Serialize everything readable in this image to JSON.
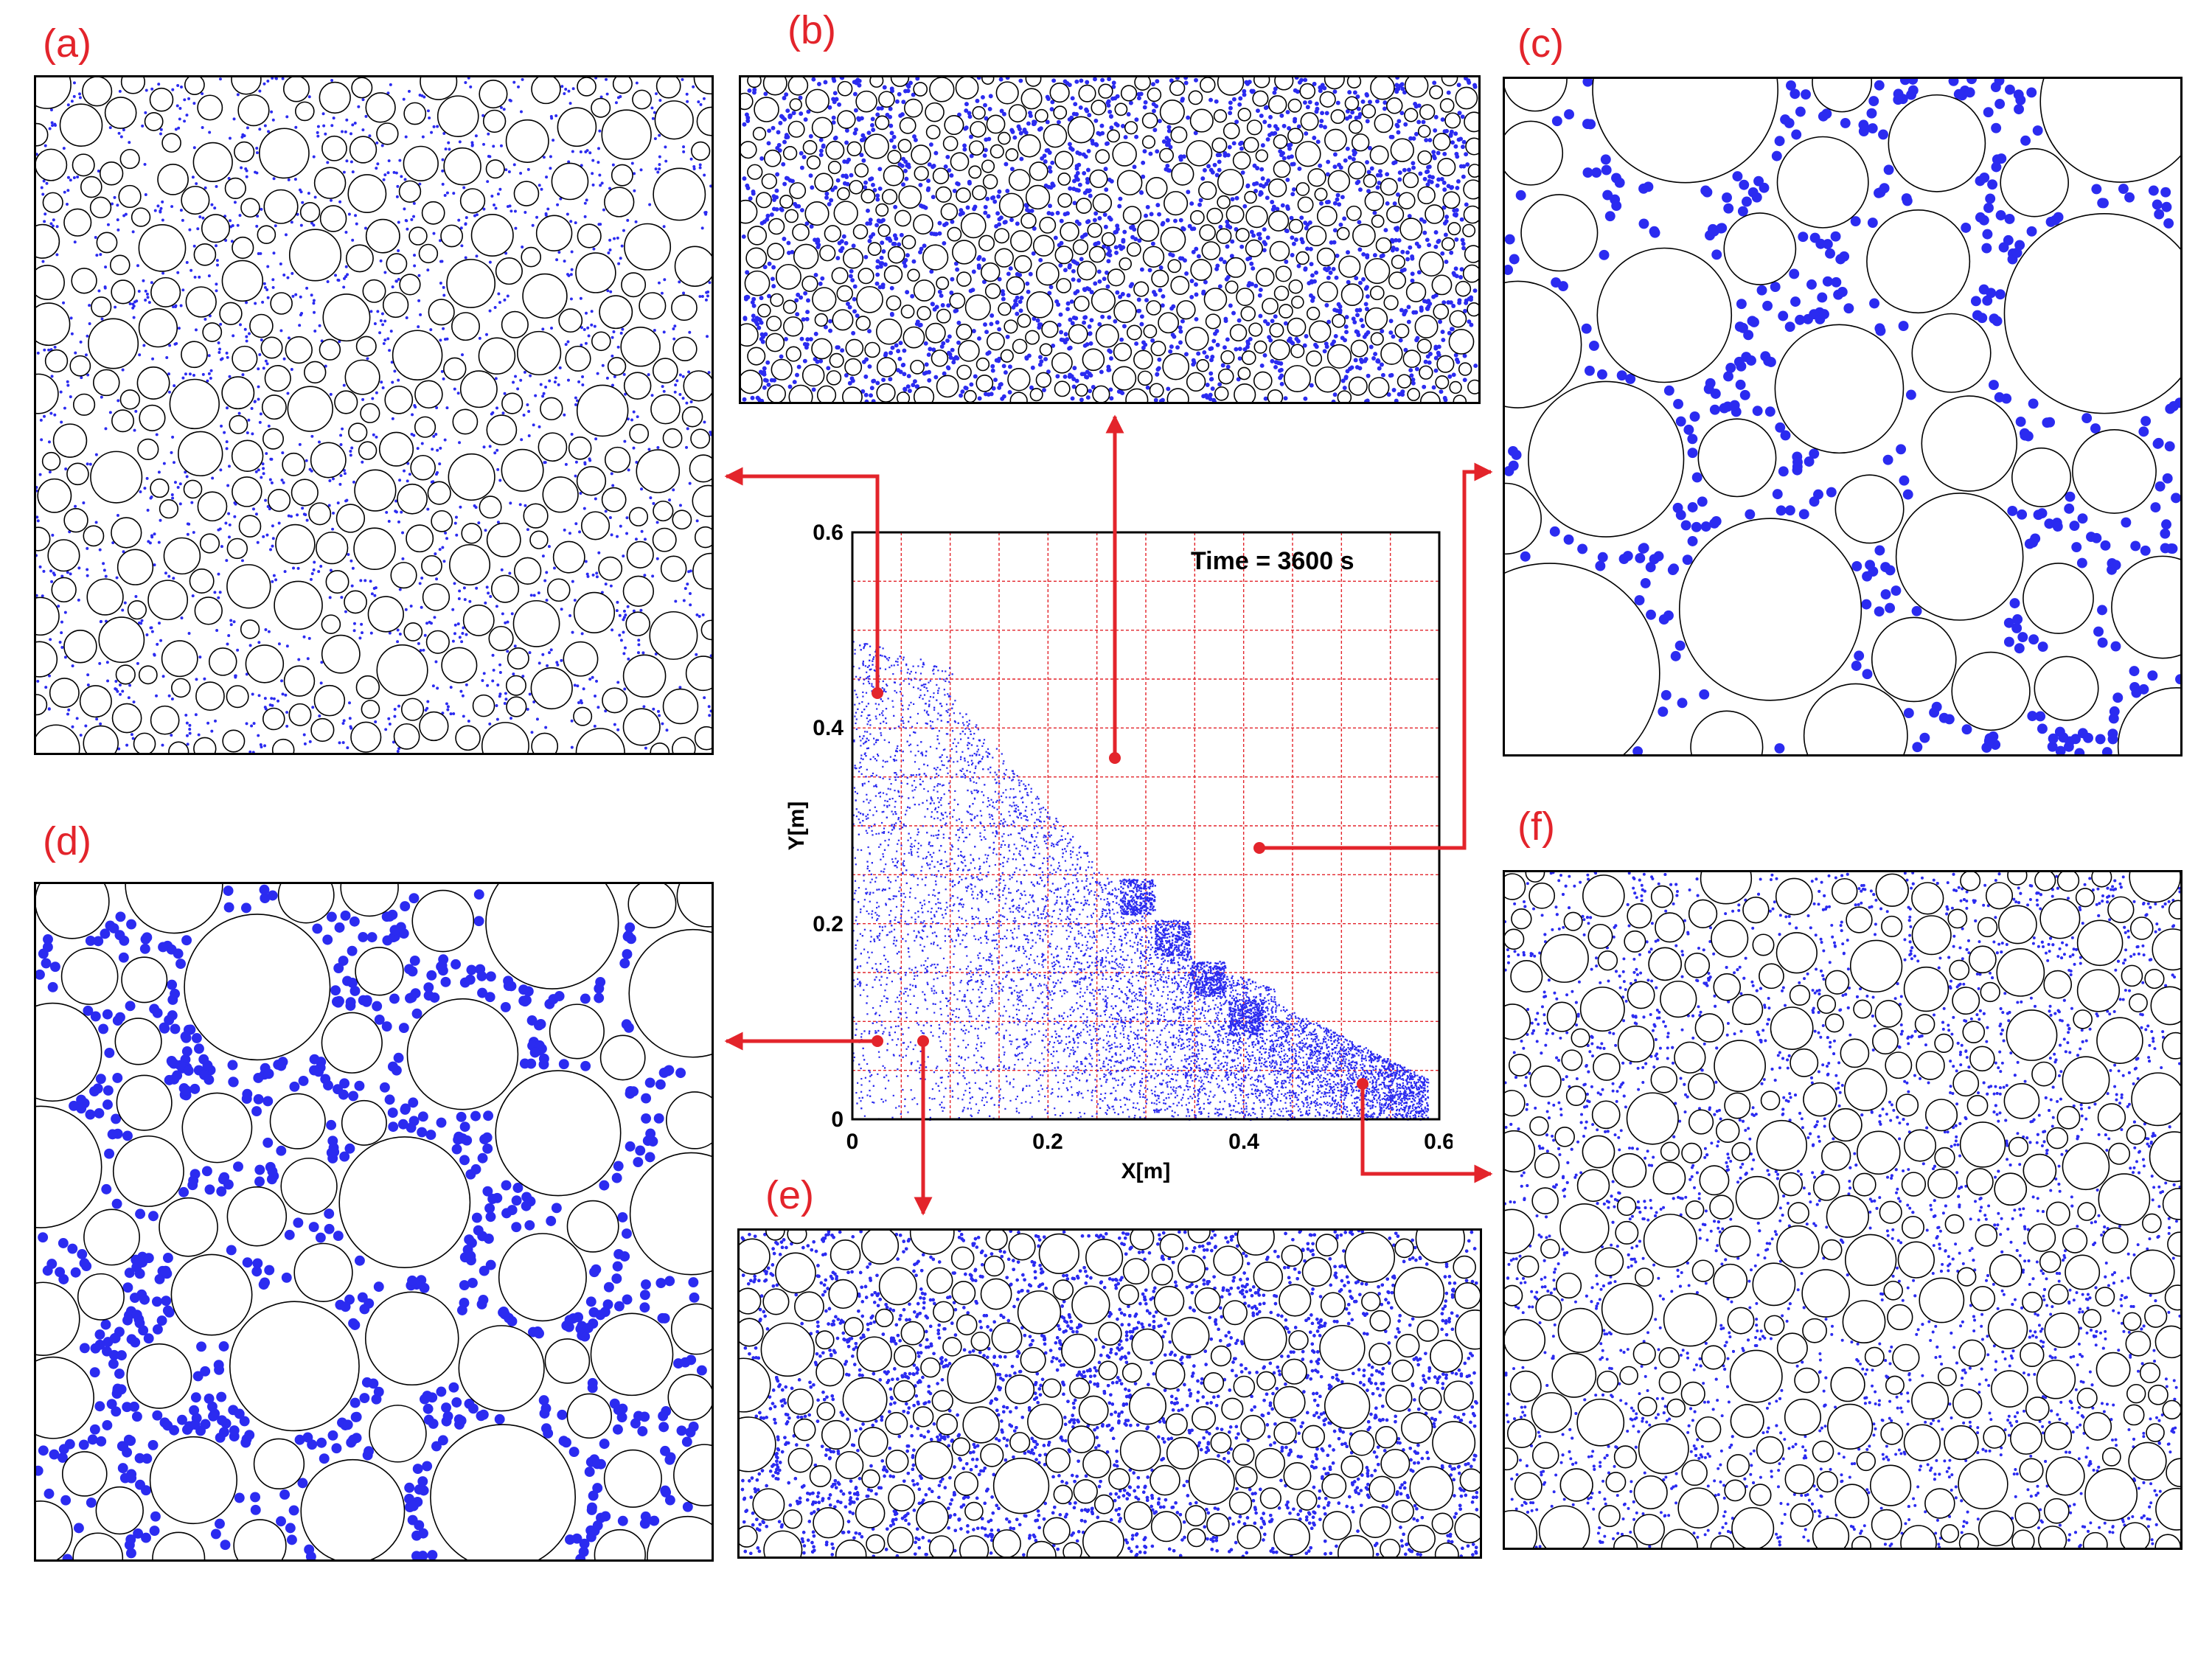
{
  "panels": {
    "a": {
      "label": "(a)"
    },
    "b": {
      "label": "(b)"
    },
    "c": {
      "label": "(c)"
    },
    "d": {
      "label": "(d)"
    },
    "e": {
      "label": "(e)"
    },
    "f": {
      "label": "(f)"
    }
  },
  "main_plot": {
    "annotation": "Time = 3600 s",
    "xlabel": "X[m]",
    "ylabel": "Y[m]",
    "xticks": [
      "0",
      "0.2",
      "0.4",
      "0.6"
    ],
    "yticks": [
      "0",
      "0.2",
      "0.4",
      "0.6"
    ]
  },
  "colors": {
    "label_red": "#e3242b",
    "arrow_red": "#e3242b",
    "particle_blue": "#2b2bf0",
    "grain_outline": "#000000",
    "grid_red": "#e3242b"
  }
}
